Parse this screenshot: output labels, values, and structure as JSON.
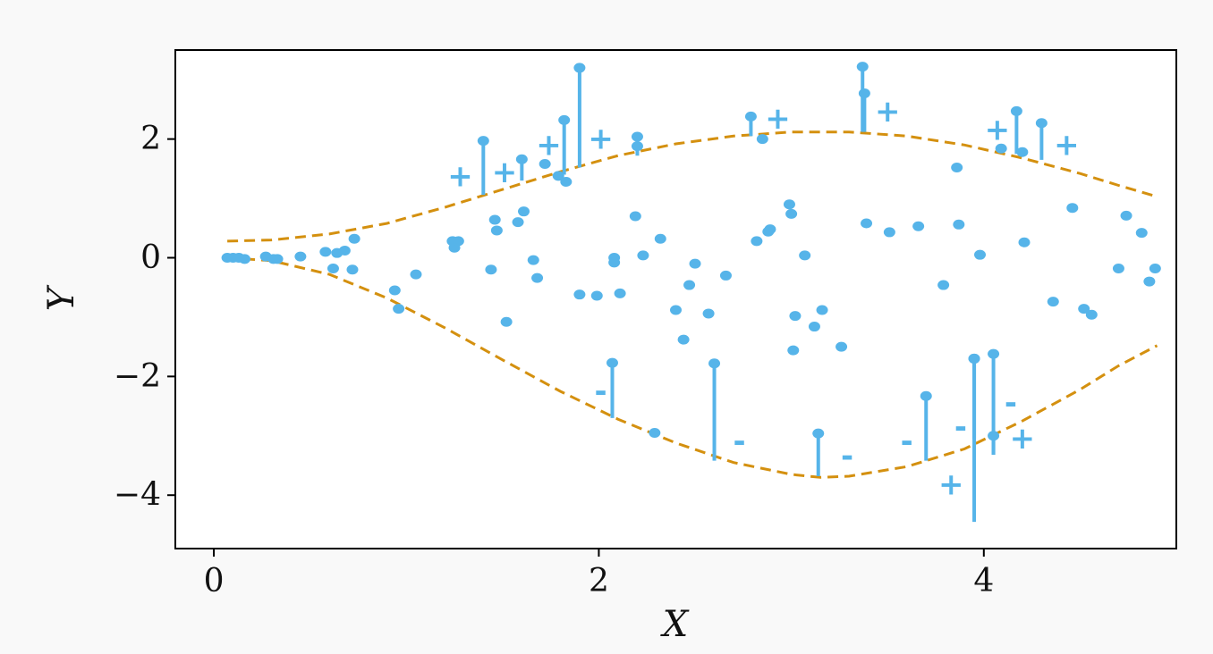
{
  "chart_data": {
    "type": "scatter",
    "title": "",
    "xlabel": "X",
    "ylabel": "Y",
    "xlim": [
      -0.2,
      5.0
    ],
    "ylim": [
      -4.9,
      3.5
    ],
    "xticks": [
      0,
      2,
      4
    ],
    "yticks": [
      -4,
      -2,
      0,
      2
    ],
    "xtick_labels": [
      "0",
      "2",
      "4"
    ],
    "ytick_labels": [
      "−4",
      "−2",
      "0",
      "2"
    ],
    "grid": false,
    "legend": "none",
    "colors": {
      "points": "#56b4e9",
      "bounds": "#d4900f",
      "axes": "#000000",
      "background": "#ffffff"
    },
    "bounds": {
      "style": "dashed",
      "upper": [
        [
          0.07,
          0.28
        ],
        [
          0.3,
          0.3
        ],
        [
          0.6,
          0.4
        ],
        [
          0.9,
          0.58
        ],
        [
          1.2,
          0.85
        ],
        [
          1.5,
          1.15
        ],
        [
          1.8,
          1.45
        ],
        [
          2.1,
          1.72
        ],
        [
          2.4,
          1.92
        ],
        [
          2.7,
          2.05
        ],
        [
          3.0,
          2.12
        ],
        [
          3.3,
          2.12
        ],
        [
          3.6,
          2.05
        ],
        [
          3.9,
          1.9
        ],
        [
          4.2,
          1.68
        ],
        [
          4.5,
          1.42
        ],
        [
          4.7,
          1.22
        ],
        [
          4.9,
          1.03
        ]
      ],
      "lower": [
        [
          0.07,
          0.0
        ],
        [
          0.3,
          -0.05
        ],
        [
          0.6,
          -0.28
        ],
        [
          0.9,
          -0.68
        ],
        [
          1.2,
          -1.18
        ],
        [
          1.5,
          -1.72
        ],
        [
          1.8,
          -2.25
        ],
        [
          2.1,
          -2.72
        ],
        [
          2.4,
          -3.12
        ],
        [
          2.7,
          -3.45
        ],
        [
          3.0,
          -3.65
        ],
        [
          3.15,
          -3.7
        ],
        [
          3.3,
          -3.68
        ],
        [
          3.6,
          -3.52
        ],
        [
          3.9,
          -3.22
        ],
        [
          4.2,
          -2.75
        ],
        [
          4.5,
          -2.22
        ],
        [
          4.7,
          -1.82
        ],
        [
          4.9,
          -1.48
        ]
      ]
    },
    "points": [
      [
        0.07,
        0.0
      ],
      [
        0.1,
        0.0
      ],
      [
        0.13,
        0.0
      ],
      [
        0.16,
        -0.02
      ],
      [
        0.27,
        0.02
      ],
      [
        0.31,
        -0.02
      ],
      [
        0.33,
        -0.02
      ],
      [
        0.45,
        0.02
      ],
      [
        0.58,
        0.1
      ],
      [
        0.62,
        -0.18
      ],
      [
        0.64,
        0.08
      ],
      [
        0.68,
        0.12
      ],
      [
        0.72,
        -0.2
      ],
      [
        0.73,
        0.32
      ],
      [
        0.94,
        -0.55
      ],
      [
        0.96,
        -0.86
      ],
      [
        1.05,
        -0.28
      ],
      [
        1.24,
        0.28
      ],
      [
        1.25,
        0.17
      ],
      [
        1.27,
        0.28
      ],
      [
        1.44,
        -0.2
      ],
      [
        1.46,
        0.64
      ],
      [
        1.47,
        0.46
      ],
      [
        1.52,
        -1.08
      ],
      [
        1.58,
        0.6
      ],
      [
        1.61,
        0.78
      ],
      [
        1.66,
        -0.04
      ],
      [
        1.68,
        -0.34
      ],
      [
        1.72,
        1.58
      ],
      [
        1.79,
        1.38
      ],
      [
        1.83,
        1.28
      ],
      [
        1.9,
        -0.62
      ],
      [
        1.99,
        -0.64
      ],
      [
        2.08,
        0.0
      ],
      [
        2.08,
        -0.08
      ],
      [
        2.11,
        -0.6
      ],
      [
        2.19,
        0.7
      ],
      [
        2.2,
        1.88
      ],
      [
        2.23,
        0.04
      ],
      [
        2.29,
        -2.95
      ],
      [
        2.32,
        0.32
      ],
      [
        2.4,
        -0.88
      ],
      [
        2.44,
        -1.38
      ],
      [
        2.47,
        -0.46
      ],
      [
        2.5,
        -0.1
      ],
      [
        2.57,
        -0.94
      ],
      [
        2.66,
        -0.3
      ],
      [
        2.82,
        0.28
      ],
      [
        2.85,
        2.0
      ],
      [
        2.88,
        0.44
      ],
      [
        2.89,
        0.48
      ],
      [
        2.99,
        0.9
      ],
      [
        3.0,
        0.74
      ],
      [
        3.01,
        -1.56
      ],
      [
        3.02,
        -0.98
      ],
      [
        3.07,
        0.04
      ],
      [
        3.12,
        -1.16
      ],
      [
        3.16,
        -0.88
      ],
      [
        3.26,
        -1.5
      ],
      [
        3.39,
        0.58
      ],
      [
        3.51,
        0.43
      ],
      [
        3.66,
        0.53
      ],
      [
        3.79,
        -0.46
      ],
      [
        3.86,
        1.52
      ],
      [
        3.87,
        0.56
      ],
      [
        3.98,
        0.05
      ],
      [
        4.09,
        1.84
      ],
      [
        4.2,
        1.78
      ],
      [
        4.21,
        0.26
      ],
      [
        4.36,
        -0.74
      ],
      [
        4.46,
        0.84
      ],
      [
        4.52,
        -0.86
      ],
      [
        4.56,
        -0.96
      ],
      [
        4.7,
        -0.18
      ],
      [
        4.74,
        0.71
      ],
      [
        4.82,
        0.42
      ],
      [
        4.86,
        -0.4
      ],
      [
        4.89,
        -0.18
      ]
    ],
    "stems": [
      {
        "x": 1.4,
        "from": 1.06,
        "to": 1.97,
        "sign": "+",
        "label_at": [
          1.28,
          1.37
        ]
      },
      {
        "x": 1.6,
        "from": 1.3,
        "to": 1.66,
        "sign": "+",
        "label_at": [
          1.51,
          1.44
        ]
      },
      {
        "x": 1.82,
        "from": 1.4,
        "to": 2.32,
        "sign": "+",
        "label_at": [
          1.74,
          1.9
        ]
      },
      {
        "x": 1.9,
        "from": 1.52,
        "to": 3.2,
        "sign": "+",
        "label_at": [
          2.01,
          2.0
        ]
      },
      {
        "x": 2.07,
        "from": -2.7,
        "to": -1.77,
        "sign": "-",
        "label_at": [
          2.01,
          -2.26
        ]
      },
      {
        "x": 2.2,
        "from": 1.72,
        "to": 2.04,
        "sign": "+",
        "label_at": null
      },
      {
        "x": 2.6,
        "from": -3.42,
        "to": -1.78,
        "sign": "-",
        "label_at": [
          2.73,
          -3.1
        ]
      },
      {
        "x": 2.79,
        "from": 2.05,
        "to": 2.38,
        "sign": "+",
        "label_at": [
          2.93,
          2.34
        ]
      },
      {
        "x": 3.14,
        "from": -3.68,
        "to": -2.96,
        "sign": "-",
        "label_at": [
          3.29,
          -3.35
        ]
      },
      {
        "x": 3.37,
        "from": 2.12,
        "to": 3.22,
        "sign": "+",
        "label_at": null
      },
      {
        "x": 3.38,
        "from": 2.12,
        "to": 2.77,
        "sign": "+",
        "label_at": [
          3.5,
          2.46
        ]
      },
      {
        "x": 3.7,
        "from": -3.42,
        "to": -2.33,
        "sign": "-",
        "label_at": [
          3.6,
          -3.1
        ]
      },
      {
        "x": 3.95,
        "from": -4.45,
        "to": -1.7,
        "sign": "+",
        "label_at": [
          3.83,
          -3.82
        ]
      },
      {
        "x": 3.95,
        "from": -3.05,
        "to": -1.7,
        "sign": "-",
        "label_at": [
          3.88,
          -2.86
        ]
      },
      {
        "x": 4.05,
        "from": -3.32,
        "to": -1.62,
        "sign": "-",
        "label_at": [
          4.14,
          -2.45
        ]
      },
      {
        "x": 4.05,
        "from": -3.32,
        "to": -3.0,
        "sign": "+",
        "label_at": [
          4.2,
          -3.05
        ]
      },
      {
        "x": 4.17,
        "from": 1.75,
        "to": 2.47,
        "sign": "+",
        "label_at": [
          4.07,
          2.15
        ]
      },
      {
        "x": 4.3,
        "from": 1.65,
        "to": 2.27,
        "sign": "+",
        "label_at": [
          4.43,
          1.9
        ]
      }
    ]
  }
}
